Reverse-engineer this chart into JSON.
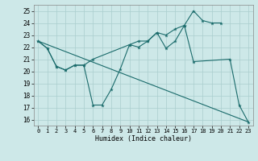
{
  "xlabel": "Humidex (Indice chaleur)",
  "xlim": [
    -0.5,
    23.5
  ],
  "ylim": [
    15.5,
    25.5
  ],
  "yticks": [
    16,
    17,
    18,
    19,
    20,
    21,
    22,
    23,
    24,
    25
  ],
  "xticks": [
    0,
    1,
    2,
    3,
    4,
    5,
    6,
    7,
    8,
    9,
    10,
    11,
    12,
    13,
    14,
    15,
    16,
    17,
    18,
    19,
    20,
    21,
    22,
    23
  ],
  "background_color": "#cde8e8",
  "line_color": "#1a6b6b",
  "grid_color": "#aacece",
  "series1_x": [
    0,
    1,
    2,
    3,
    4,
    5,
    6,
    7,
    8,
    9,
    10,
    11,
    12,
    13,
    14,
    15,
    16,
    17,
    21,
    22,
    23
  ],
  "series1_y": [
    22.5,
    21.9,
    20.4,
    20.1,
    20.5,
    20.5,
    17.2,
    17.2,
    18.5,
    20.2,
    22.2,
    22.0,
    22.5,
    23.2,
    21.9,
    22.5,
    23.8,
    20.8,
    21.0,
    17.2,
    15.8
  ],
  "series2_x": [
    0,
    1,
    2,
    3,
    4,
    5,
    6,
    10,
    11,
    12,
    13,
    14,
    15,
    16,
    17,
    18,
    19,
    20
  ],
  "series2_y": [
    22.5,
    21.9,
    20.4,
    20.1,
    20.5,
    20.5,
    21.0,
    22.2,
    22.5,
    22.5,
    23.2,
    23.0,
    23.5,
    23.8,
    25.0,
    24.2,
    24.0,
    24.0
  ],
  "series3_x": [
    0,
    23
  ],
  "series3_y": [
    22.5,
    15.8
  ]
}
